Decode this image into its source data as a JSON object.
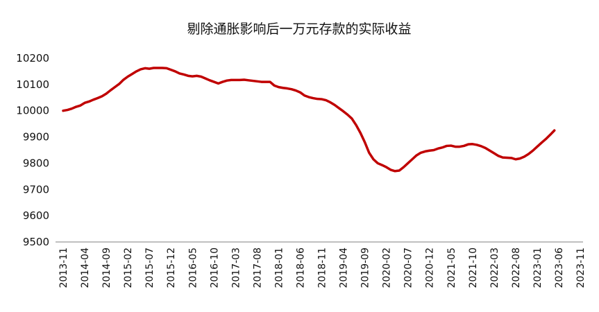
{
  "chart_data": {
    "type": "line",
    "title": "剔除通胀影响后一万元存款的实际收益",
    "xlabel": "",
    "ylabel": "",
    "ylim": [
      9500,
      10200
    ],
    "yticks": [
      "10200",
      "10100",
      "10000",
      "9900",
      "9800",
      "9700",
      "9600",
      "9500"
    ],
    "grid": false,
    "legend": "none",
    "x_ticks": [
      "2013-11",
      "2014-04",
      "2014-09",
      "2015-02",
      "2015-07",
      "2015-12",
      "2016-05",
      "2016-10",
      "2017-03",
      "2017-08",
      "2018-01",
      "2018-06",
      "2018-11",
      "2019-04",
      "2019-09",
      "2020-02",
      "2020-07",
      "2020-12",
      "2021-05",
      "2021-10",
      "2022-03",
      "2022-08",
      "2023-01",
      "2023-06",
      "2023-11"
    ],
    "colors": {
      "line": "#c00000",
      "axis": "#7f7f7f"
    },
    "series": [
      {
        "name": "实际收益",
        "start": "2013-11",
        "values": [
          10000,
          10003,
          10008,
          10015,
          10020,
          10030,
          10035,
          10042,
          10048,
          10055,
          10065,
          10078,
          10090,
          10102,
          10118,
          10130,
          10140,
          10150,
          10158,
          10162,
          10160,
          10163,
          10163,
          10163,
          10162,
          10156,
          10150,
          10142,
          10138,
          10133,
          10131,
          10133,
          10130,
          10123,
          10116,
          10110,
          10104,
          10110,
          10115,
          10117,
          10117,
          10117,
          10118,
          10116,
          10114,
          10112,
          10110,
          10110,
          10110,
          10096,
          10090,
          10087,
          10085,
          10082,
          10077,
          10070,
          10058,
          10052,
          10048,
          10045,
          10044,
          10040,
          10032,
          10022,
          10010,
          9998,
          9985,
          9970,
          9945,
          9915,
          9880,
          9840,
          9815,
          9800,
          9793,
          9785,
          9775,
          9770,
          9772,
          9785,
          9800,
          9815,
          9830,
          9840,
          9845,
          9848,
          9850,
          9856,
          9860,
          9866,
          9867,
          9863,
          9863,
          9866,
          9872,
          9873,
          9870,
          9865,
          9858,
          9848,
          9838,
          9828,
          9822,
          9821,
          9820,
          9815,
          9818,
          9825,
          9835,
          9848,
          9863,
          9878,
          9892,
          9908,
          9925
        ]
      }
    ]
  }
}
